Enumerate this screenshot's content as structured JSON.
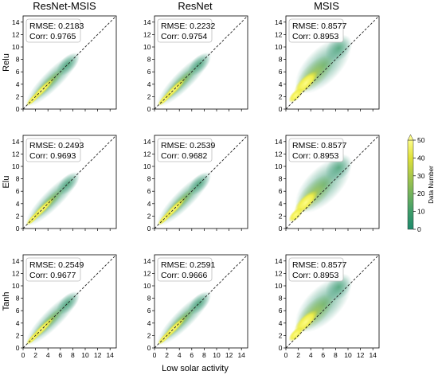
{
  "figure": {
    "xlabel": "Low solar activity",
    "colorbar": {
      "label": "Data Number",
      "ticks": [
        0,
        10,
        20,
        30,
        40,
        50
      ],
      "range": [
        0,
        50
      ],
      "colors": [
        "#1e8a6c",
        "#3f9d6a",
        "#74b35c",
        "#a9c84a",
        "#dfe13a",
        "#fdfc88"
      ]
    }
  },
  "columns": [
    "ResNet-MSIS",
    "ResNet",
    "MSIS"
  ],
  "rows": [
    "Relu",
    "Elu",
    "Tanh"
  ],
  "chart_data": [
    {
      "type": "heatmap",
      "row": "Relu",
      "column": "ResNet-MSIS",
      "rmse": "RMSE: 0.2183",
      "corr": "Corr: 0.9765",
      "xlim": [
        0,
        15
      ],
      "ylim": [
        0,
        15
      ],
      "xticks": [
        0,
        2,
        4,
        6,
        8,
        10,
        12,
        14
      ],
      "yticks": [
        0,
        2,
        4,
        6,
        8,
        10,
        12,
        14
      ],
      "reference_line": "y = x",
      "xtick_labels_shown": false
    },
    {
      "type": "heatmap",
      "row": "Relu",
      "column": "ResNet",
      "rmse": "RMSE: 0.2232",
      "corr": "Corr: 0.9754",
      "xlim": [
        0,
        15
      ],
      "ylim": [
        0,
        15
      ],
      "xticks": [
        0,
        2,
        4,
        6,
        8,
        10,
        12,
        14
      ],
      "yticks": [
        0,
        2,
        4,
        6,
        8,
        10,
        12,
        14
      ],
      "reference_line": "y = x",
      "xtick_labels_shown": false
    },
    {
      "type": "heatmap",
      "row": "Relu",
      "column": "MSIS",
      "rmse": "RMSE: 0.8577",
      "corr": "Corr: 0.8953",
      "xlim": [
        0,
        15
      ],
      "ylim": [
        0,
        15
      ],
      "xticks": [
        0,
        2,
        4,
        6,
        8,
        10,
        12,
        14
      ],
      "yticks": [
        0,
        2,
        4,
        6,
        8,
        10,
        12,
        14
      ],
      "reference_line": "y = x",
      "xtick_labels_shown": false
    },
    {
      "type": "heatmap",
      "row": "Elu",
      "column": "ResNet-MSIS",
      "rmse": "RMSE: 0.2493",
      "corr": "Corr: 0.9693",
      "xlim": [
        0,
        15
      ],
      "ylim": [
        0,
        15
      ],
      "xticks": [
        0,
        2,
        4,
        6,
        8,
        10,
        12,
        14
      ],
      "yticks": [
        0,
        2,
        4,
        6,
        8,
        10,
        12,
        14
      ],
      "reference_line": "y = x",
      "xtick_labels_shown": false
    },
    {
      "type": "heatmap",
      "row": "Elu",
      "column": "ResNet",
      "rmse": "RMSE: 0.2539",
      "corr": "Corr: 0.9682",
      "xlim": [
        0,
        15
      ],
      "ylim": [
        0,
        15
      ],
      "xticks": [
        0,
        2,
        4,
        6,
        8,
        10,
        12,
        14
      ],
      "yticks": [
        0,
        2,
        4,
        6,
        8,
        10,
        12,
        14
      ],
      "reference_line": "y = x",
      "xtick_labels_shown": false
    },
    {
      "type": "heatmap",
      "row": "Elu",
      "column": "MSIS",
      "rmse": "RMSE: 0.8577",
      "corr": "Corr: 0.8953",
      "xlim": [
        0,
        15
      ],
      "ylim": [
        0,
        15
      ],
      "xticks": [
        0,
        2,
        4,
        6,
        8,
        10,
        12,
        14
      ],
      "yticks": [
        0,
        2,
        4,
        6,
        8,
        10,
        12,
        14
      ],
      "reference_line": "y = x",
      "xtick_labels_shown": false
    },
    {
      "type": "heatmap",
      "row": "Tanh",
      "column": "ResNet-MSIS",
      "rmse": "RMSE: 0.2549",
      "corr": "Corr: 0.9677",
      "xlim": [
        0,
        15
      ],
      "ylim": [
        0,
        15
      ],
      "xticks": [
        0,
        2,
        4,
        6,
        8,
        10,
        12,
        14
      ],
      "yticks": [
        0,
        2,
        4,
        6,
        8,
        10,
        12,
        14
      ],
      "reference_line": "y = x",
      "xtick_labels_shown": true
    },
    {
      "type": "heatmap",
      "row": "Tanh",
      "column": "ResNet",
      "rmse": "RMSE: 0.2591",
      "corr": "Corr: 0.9666",
      "xlim": [
        0,
        15
      ],
      "ylim": [
        0,
        15
      ],
      "xticks": [
        0,
        2,
        4,
        6,
        8,
        10,
        12,
        14
      ],
      "yticks": [
        0,
        2,
        4,
        6,
        8,
        10,
        12,
        14
      ],
      "reference_line": "y = x",
      "xtick_labels_shown": true
    },
    {
      "type": "heatmap",
      "row": "Tanh",
      "column": "MSIS",
      "rmse": "RMSE: 0.8577",
      "corr": "Corr: 0.8953",
      "xlim": [
        0,
        15
      ],
      "ylim": [
        0,
        15
      ],
      "xticks": [
        0,
        2,
        4,
        6,
        8,
        10,
        12,
        14
      ],
      "yticks": [
        0,
        2,
        4,
        6,
        8,
        10,
        12,
        14
      ],
      "reference_line": "y = x",
      "xtick_labels_shown": true
    }
  ]
}
